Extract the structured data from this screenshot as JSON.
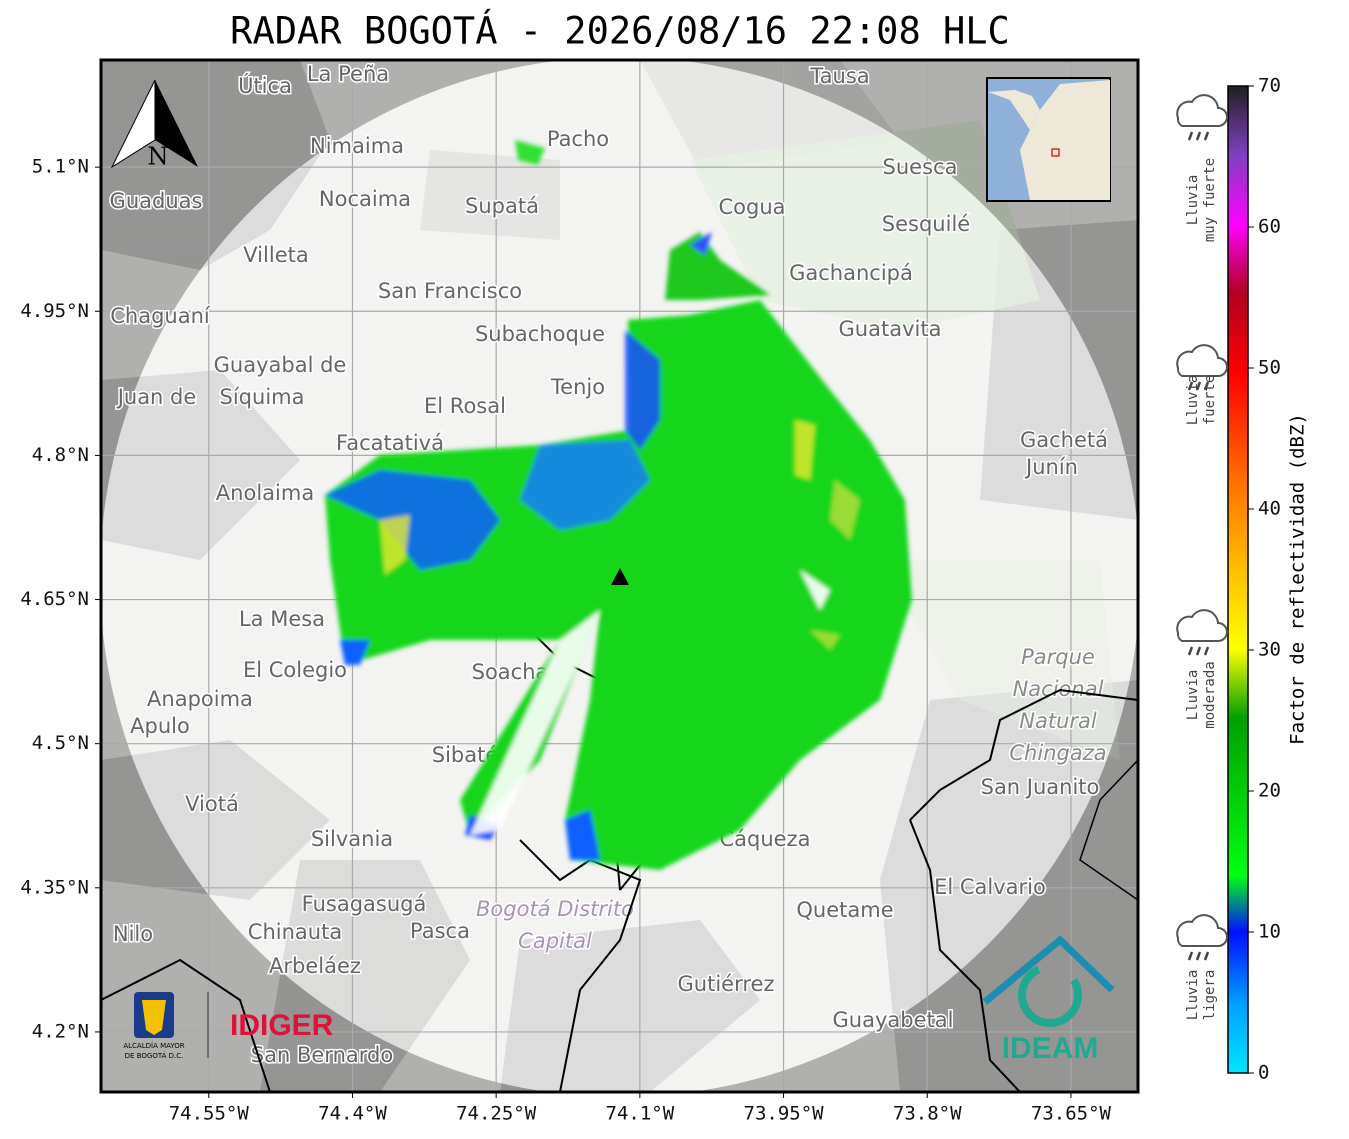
{
  "title": "RADAR BOGOTÁ - 2026/08/16 22:08 HLC",
  "map": {
    "lon_range": [
      -74.6625,
      -73.58
    ],
    "lat_range": [
      4.1375,
      5.2115
    ],
    "x_ticks": [
      {
        "value": -74.55,
        "label": "74.55°W"
      },
      {
        "value": -74.4,
        "label": "74.4°W"
      },
      {
        "value": -74.25,
        "label": "74.25°W"
      },
      {
        "value": -74.1,
        "label": "74.1°W"
      },
      {
        "value": -73.95,
        "label": "73.95°W"
      },
      {
        "value": -73.8,
        "label": "73.8°W"
      },
      {
        "value": -73.65,
        "label": "73.65°W"
      }
    ],
    "y_ticks": [
      {
        "value": 5.1,
        "label": "5.1°N"
      },
      {
        "value": 4.95,
        "label": "4.95°N"
      },
      {
        "value": 4.8,
        "label": "4.8°N"
      },
      {
        "value": 4.65,
        "label": "4.65°N"
      },
      {
        "value": 4.5,
        "label": "4.5°N"
      },
      {
        "value": 4.35,
        "label": "4.35°N"
      },
      {
        "value": 4.2,
        "label": "4.2°N"
      }
    ],
    "north": "N",
    "places": [
      "La Peña",
      "Útica",
      "Tausa",
      "Pacho",
      "Nimaima",
      "Guaduas",
      "Nocaima",
      "Supatá",
      "Suesca",
      "Cogua",
      "Sesquilé",
      "Villeta",
      "Gachancipá",
      "San Francisco",
      "Chaguaní",
      "Guatavita",
      "Subachoque",
      "Guayabal de",
      "Síquima",
      "Tenjo",
      "El Rosal",
      "Juan de",
      "Facatativá",
      "Gachetá",
      "Junín",
      "Anolaima",
      "La Mesa",
      "El Colegio",
      "Soacha",
      "Anapoima",
      "Apulo",
      "Sibaté",
      "San Juanito",
      "Viotá",
      "Silvania",
      "Cáqueza",
      "El Calvario",
      "Fusagasugá",
      "Quetame",
      "Nilo",
      "Chinauta",
      "Pasca",
      "Arbeláez",
      "Gutiérrez",
      "Guayabetal",
      "San Bernardo"
    ],
    "park": [
      "Parque",
      "Nacional",
      "Natural",
      "Chingaza"
    ],
    "district": [
      "Bogotá Distrito",
      "Capital"
    ]
  },
  "colorbar": {
    "label": "Factor de reflectividad (dBZ)",
    "range": [
      0,
      70
    ],
    "ticks": [
      0,
      10,
      20,
      30,
      40,
      50,
      60,
      70
    ]
  },
  "rain_levels": [
    [
      "Lluvia",
      "muy fuerte"
    ],
    [
      "Lluvia",
      "fuerte"
    ],
    [
      "Lluvia",
      "moderada"
    ],
    [
      "Lluvia",
      "ligera"
    ]
  ],
  "logos": {
    "alcaldia": [
      "ALCALDÍA MAYOR",
      "DE BOGOTÁ D.C."
    ],
    "idiger": "IDIGER",
    "ideam": "IDEAM"
  }
}
